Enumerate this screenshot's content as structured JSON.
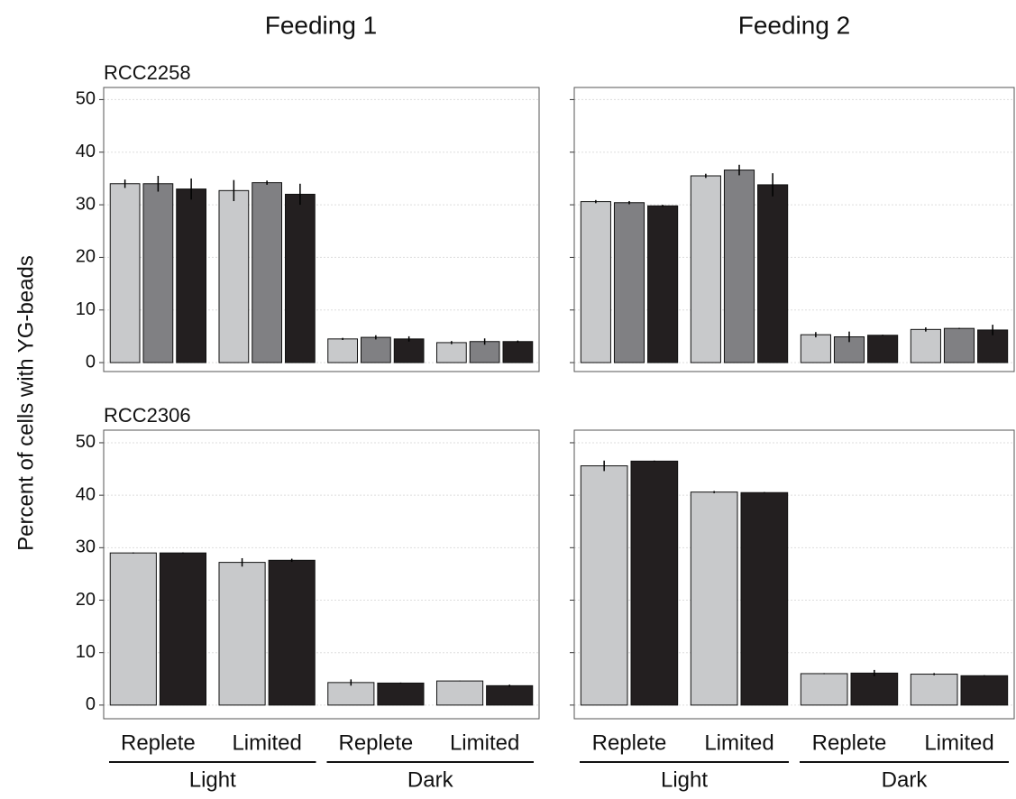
{
  "column_titles": [
    "Feeding 1",
    "Feeding 2"
  ],
  "y_label": "Percent of cells with YG-beads",
  "chart_data": [
    {
      "type": "bar",
      "title": "RCC2258",
      "ylim": [
        -1.7,
        52.3
      ],
      "yticks": [
        0,
        10,
        20,
        30,
        40,
        50
      ],
      "tick_labels": true,
      "grid": true,
      "series": [
        {
          "color": "#c8c9cb",
          "values": [
            34,
            32.7,
            4.5,
            3.8
          ],
          "errors": [
            0.8,
            2,
            0.2,
            0.3
          ]
        },
        {
          "color": "#808083",
          "values": [
            34,
            34.2,
            4.8,
            4
          ],
          "errors": [
            1.5,
            0.4,
            0.4,
            0.6
          ]
        },
        {
          "color": "#231f20",
          "values": [
            33,
            32,
            4.5,
            4
          ],
          "errors": [
            2,
            2,
            0.5,
            0.2
          ]
        }
      ]
    },
    {
      "type": "bar",
      "ylim": [
        -1.7,
        52.3
      ],
      "yticks": [
        0,
        10,
        20,
        30,
        40,
        50
      ],
      "tick_labels": false,
      "grid": true,
      "series": [
        {
          "color": "#c8c9cb",
          "values": [
            30.6,
            35.5,
            5.3,
            6.3
          ],
          "errors": [
            0.3,
            0.4,
            0.5,
            0.4
          ]
        },
        {
          "color": "#808083",
          "values": [
            30.4,
            36.6,
            4.9,
            6.5
          ],
          "errors": [
            0.3,
            1,
            1,
            0.1
          ]
        },
        {
          "color": "#231f20",
          "values": [
            29.8,
            33.8,
            5.2,
            6.2
          ],
          "errors": [
            0.2,
            2.2,
            0.1,
            1
          ]
        }
      ]
    },
    {
      "type": "bar",
      "title": "RCC2306",
      "ylim": [
        -2.6,
        52.4
      ],
      "yticks": [
        0,
        10,
        20,
        30,
        40,
        50
      ],
      "tick_labels": true,
      "grid": true,
      "categories": [
        "Replete",
        "Limited",
        "Replete",
        "Limited"
      ],
      "group_labels": [
        "Light",
        "Dark"
      ],
      "series": [
        {
          "color": "#c8c9cb",
          "values": [
            29,
            27.2,
            4.3,
            4.6
          ],
          "errors": [
            0.1,
            0.8,
            0.6,
            0.05
          ]
        },
        {
          "color": "#231f20",
          "values": [
            29,
            27.6,
            4.2,
            3.7
          ],
          "errors": [
            0.1,
            0.3,
            0.1,
            0.2
          ]
        }
      ]
    },
    {
      "type": "bar",
      "ylim": [
        -2.6,
        52.4
      ],
      "yticks": [
        0,
        10,
        20,
        30,
        40,
        50
      ],
      "tick_labels": false,
      "grid": true,
      "categories": [
        "Replete",
        "Limited",
        "Replete",
        "Limited"
      ],
      "group_labels": [
        "Light",
        "Dark"
      ],
      "series": [
        {
          "color": "#c8c9cb",
          "values": [
            45.6,
            40.6,
            6,
            5.9
          ],
          "errors": [
            1,
            0.2,
            0.1,
            0.2
          ]
        },
        {
          "color": "#231f20",
          "values": [
            46.5,
            40.5,
            6.1,
            5.6
          ],
          "errors": [
            0.1,
            0.1,
            0.6,
            0.1
          ]
        }
      ]
    }
  ]
}
